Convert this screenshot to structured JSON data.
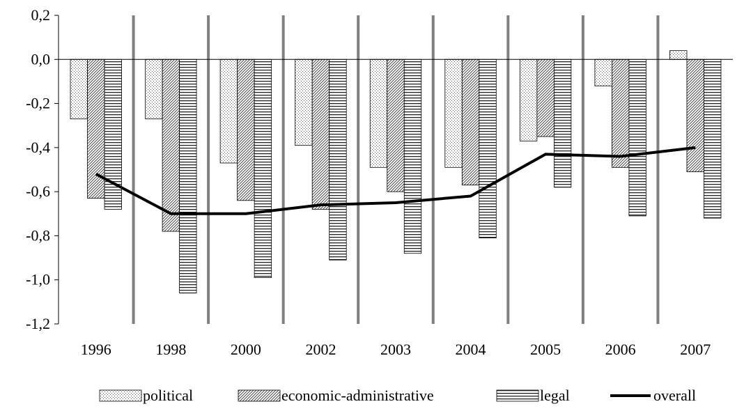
{
  "chart_data": {
    "type": "bar",
    "title": "",
    "xlabel": "",
    "ylabel": "",
    "ylim": [
      -1.2,
      0.2
    ],
    "yticks": [
      "0,2",
      "0,0",
      "-0,2",
      "-0,4",
      "-0,6",
      "-0,8",
      "-1,0",
      "-1,2"
    ],
    "ytick_values": [
      0.2,
      0.0,
      -0.2,
      -0.4,
      -0.6,
      -0.8,
      -1.0,
      -1.2
    ],
    "categories": [
      "1996",
      "1998",
      "2000",
      "2002",
      "2003",
      "2004",
      "2005",
      "2006",
      "2007"
    ],
    "series": [
      {
        "name": "political",
        "kind": "bar",
        "pattern": "dots",
        "values": [
          -0.27,
          -0.27,
          -0.47,
          -0.39,
          -0.49,
          -0.49,
          -0.37,
          -0.12,
          0.04
        ]
      },
      {
        "name": "economic-administrative",
        "kind": "bar",
        "pattern": "diagonal",
        "values": [
          -0.63,
          -0.78,
          -0.64,
          -0.68,
          -0.6,
          -0.57,
          -0.35,
          -0.49,
          -0.51
        ]
      },
      {
        "name": "legal",
        "kind": "bar",
        "pattern": "horizontal",
        "values": [
          -0.68,
          -1.06,
          -0.99,
          -0.91,
          -0.88,
          -0.81,
          -0.58,
          -0.71,
          -0.72
        ]
      },
      {
        "name": "overall",
        "kind": "line",
        "color": "#000000",
        "values": [
          -0.52,
          -0.7,
          -0.7,
          -0.66,
          -0.65,
          -0.62,
          -0.43,
          -0.44,
          -0.4
        ]
      }
    ],
    "separator_color": "#808080",
    "grid": false,
    "legend_position": "bottom"
  }
}
